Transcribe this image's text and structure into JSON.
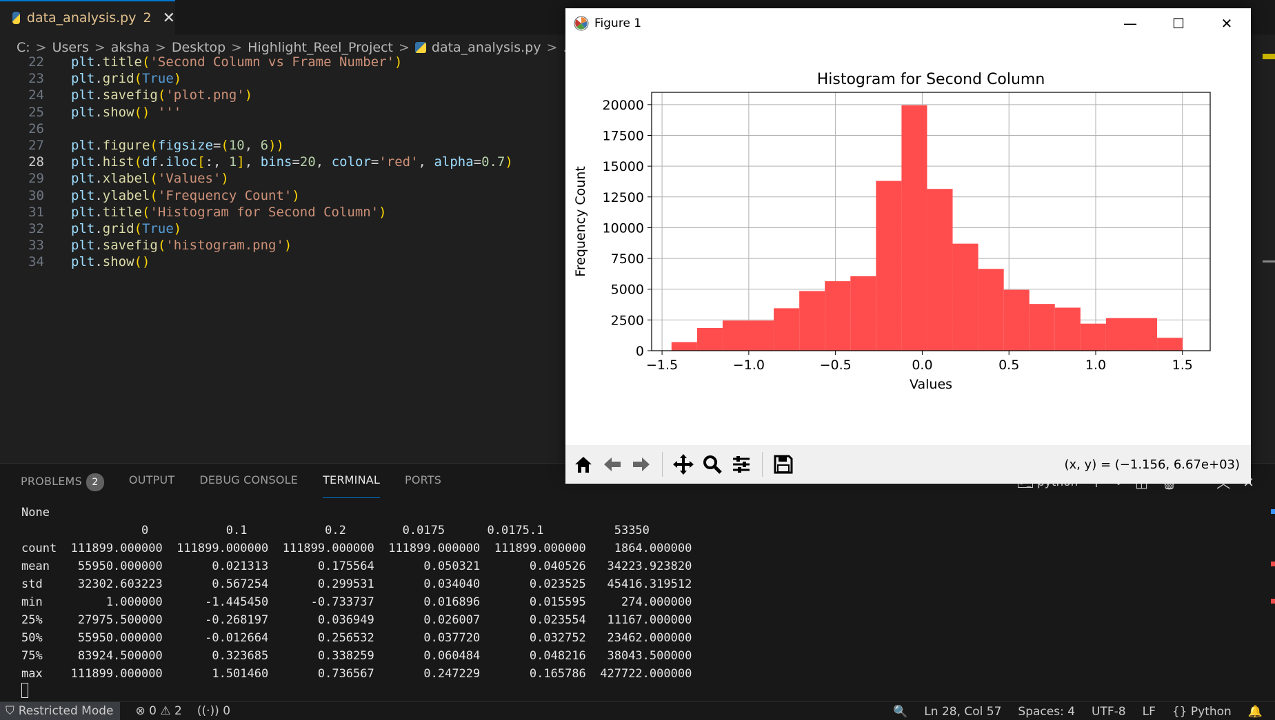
{
  "tab": {
    "filename": "data_analysis.py",
    "problems_count": "2",
    "close": "✕"
  },
  "breadcrumb": [
    "C:",
    "Users",
    "aksha",
    "Desktop",
    "Highlight_Reel_Project",
    "data_analysis.py",
    "..."
  ],
  "editor": {
    "active_line": "28",
    "lines": [
      {
        "num": "22",
        "code": "plt.title('Second Column vs Frame Number')"
      },
      {
        "num": "23",
        "code": "plt.grid(True)"
      },
      {
        "num": "24",
        "code": "plt.savefig('plot.png')"
      },
      {
        "num": "25",
        "code": "plt.show() '''"
      },
      {
        "num": "26",
        "code": ""
      },
      {
        "num": "27",
        "code": "plt.figure(figsize=(10, 6))"
      },
      {
        "num": "28",
        "code": "plt.hist(df.iloc[:, 1], bins=20, color='red', alpha=0.7)"
      },
      {
        "num": "29",
        "code": "plt.xlabel('Values')"
      },
      {
        "num": "30",
        "code": "plt.ylabel('Frequency Count')"
      },
      {
        "num": "31",
        "code": "plt.title('Histogram for Second Column')"
      },
      {
        "num": "32",
        "code": "plt.grid(True)"
      },
      {
        "num": "33",
        "code": "plt.savefig('histogram.png')"
      },
      {
        "num": "34",
        "code": "plt.show()"
      }
    ]
  },
  "panel": {
    "tabs": [
      "PROBLEMS",
      "OUTPUT",
      "DEBUG CONSOLE",
      "TERMINAL",
      "PORTS"
    ],
    "active_tab": "TERMINAL",
    "problems_badge": "2",
    "terminal_name": "python",
    "terminal_lines": [
      "None",
      "                 0           0.1           0.2        0.0175      0.0175.1          53350",
      "count  111899.000000  111899.000000  111899.000000  111899.000000  111899.000000    1864.000000",
      "mean    55950.000000       0.021313       0.175564       0.050321       0.040526   34223.923820",
      "std     32302.603223       0.567254       0.299531       0.034040       0.023525   45416.319512",
      "min         1.000000      -1.445450      -0.733737       0.016896       0.015595     274.000000",
      "25%     27975.500000      -0.268197       0.036949       0.026007       0.023554   11167.000000",
      "50%     55950.000000      -0.012664       0.256532       0.037720       0.032752   23462.000000",
      "75%     83924.500000       0.323685       0.338259       0.060484       0.048216   38043.500000",
      "max    111899.000000       1.501460       0.736567       0.247229       0.165786  427722.000000"
    ]
  },
  "statusbar": {
    "restricted": "Restricted Mode",
    "errors": "0",
    "warnings": "2",
    "ports": "0",
    "position": "Ln 28, Col 57",
    "spaces": "Spaces: 4",
    "encoding": "UTF-8",
    "eol": "LF",
    "language": "Python"
  },
  "figure_window": {
    "title": "Figure 1",
    "coords": "(x, y) = (−1.156, 6.67e+03)"
  },
  "chart_data": {
    "type": "bar",
    "title": "Histogram for Second Column",
    "xlabel": "Values",
    "ylabel": "Frequency Count",
    "bar_color": "#ff4d4d",
    "grid": true,
    "xlim": [
      -1.56,
      1.66
    ],
    "ylim": [
      0,
      21000
    ],
    "xticks": [
      -1.5,
      -1.0,
      -0.5,
      0.0,
      0.5,
      1.0,
      1.5
    ],
    "xtick_labels": [
      "−1.5",
      "−1.0",
      "−0.5",
      "0.0",
      "0.5",
      "1.0",
      "1.5"
    ],
    "yticks": [
      0,
      2500,
      5000,
      7500,
      10000,
      12500,
      15000,
      17500,
      20000
    ],
    "ytick_labels": [
      "0",
      "2500",
      "5000",
      "7500",
      "10000",
      "12500",
      "15000",
      "17500",
      "20000"
    ],
    "bin_range": [
      -1.44545,
      1.50146
    ],
    "values": [
      700,
      1850,
      2450,
      2450,
      3450,
      4850,
      5650,
      6050,
      13800,
      19950,
      13150,
      8700,
      6650,
      4950,
      3800,
      3500,
      2200,
      2650,
      2650,
      1050
    ]
  }
}
